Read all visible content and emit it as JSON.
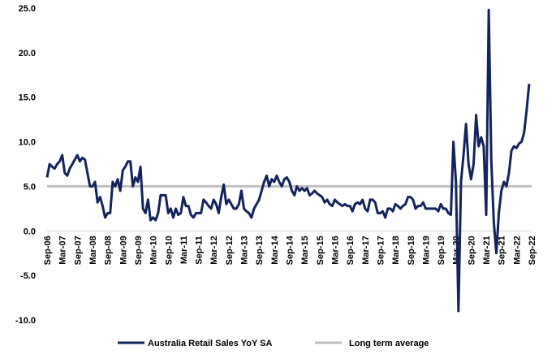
{
  "chart_data": {
    "type": "line",
    "categories": [
      "Sep-06",
      null,
      null,
      null,
      null,
      null,
      "Mar-07",
      null,
      null,
      null,
      null,
      null,
      "Sep-07",
      null,
      null,
      null,
      null,
      null,
      "Mar-08",
      null,
      null,
      null,
      null,
      null,
      "Sep-08",
      null,
      null,
      null,
      null,
      null,
      "Mar-09",
      null,
      null,
      null,
      null,
      null,
      "Sep-09",
      null,
      null,
      null,
      null,
      null,
      "Mar-10",
      null,
      null,
      null,
      null,
      null,
      "Sep-10",
      null,
      null,
      null,
      null,
      null,
      "Mar-11",
      null,
      null,
      null,
      null,
      null,
      "Sep-11",
      null,
      null,
      null,
      null,
      null,
      "Mar-12",
      null,
      null,
      null,
      null,
      null,
      "Sep-12",
      null,
      null,
      null,
      null,
      null,
      "Mar-13",
      null,
      null,
      null,
      null,
      null,
      "Sep-13",
      null,
      null,
      null,
      null,
      null,
      "Mar-14",
      null,
      null,
      null,
      null,
      null,
      "Sep-14",
      null,
      null,
      null,
      null,
      null,
      "Mar-15",
      null,
      null,
      null,
      null,
      null,
      "Sep-15",
      null,
      null,
      null,
      null,
      null,
      "Mar-16",
      null,
      null,
      null,
      null,
      null,
      "Sep-16",
      null,
      null,
      null,
      null,
      null,
      "Mar-17",
      null,
      null,
      null,
      null,
      null,
      "Sep-17",
      null,
      null,
      null,
      null,
      null,
      "Mar-18",
      null,
      null,
      null,
      null,
      null,
      "Sep-18",
      null,
      null,
      null,
      null,
      null,
      "Mar-19",
      null,
      null,
      null,
      null,
      null,
      "Sep-19",
      null,
      null,
      null,
      null,
      null,
      "Mar-20",
      null,
      null,
      null,
      null,
      null,
      "Sep-20",
      null,
      null,
      null,
      null,
      null,
      "Mar-21",
      null,
      null,
      null,
      null,
      null,
      "Sep-21",
      null,
      null,
      null,
      null,
      null,
      "Mar-22",
      null,
      null,
      null,
      null,
      null,
      "Sep-22"
    ],
    "series": [
      {
        "name": "Australia Retail Sales YoY SA",
        "color": "#13235b",
        "width": 3,
        "values": [
          6.0,
          7.5,
          7.2,
          7.0,
          7.5,
          7.8,
          8.5,
          6.5,
          6.2,
          7.0,
          7.5,
          8.0,
          8.5,
          7.8,
          8.2,
          8.0,
          6.5,
          5.0,
          5.0,
          5.5,
          3.2,
          3.8,
          2.8,
          1.5,
          2.0,
          2.0,
          5.5,
          5.0,
          5.8,
          4.5,
          6.8,
          7.2,
          7.8,
          7.8,
          5.0,
          6.0,
          5.5,
          7.2,
          2.5,
          2.0,
          3.5,
          1.2,
          1.5,
          1.2,
          2.0,
          4.0,
          4.0,
          4.0,
          2.0,
          2.5,
          1.5,
          2.5,
          1.8,
          2.0,
          3.8,
          2.8,
          2.8,
          1.8,
          1.5,
          2.0,
          2.0,
          2.0,
          3.5,
          3.2,
          2.8,
          2.5,
          3.5,
          3.0,
          2.0,
          3.8,
          5.2,
          3.0,
          3.5,
          3.0,
          2.5,
          2.5,
          3.0,
          4.5,
          2.5,
          2.2,
          2.0,
          1.5,
          2.5,
          3.0,
          3.5,
          4.5,
          5.5,
          6.2,
          5.0,
          5.8,
          5.5,
          6.2,
          5.5,
          5.0,
          5.8,
          6.0,
          5.5,
          4.5,
          4.0,
          5.0,
          4.5,
          4.8,
          4.5,
          4.8,
          4.0,
          4.2,
          4.5,
          4.2,
          4.0,
          3.8,
          3.2,
          3.5,
          3.0,
          2.8,
          3.5,
          3.2,
          3.0,
          2.8,
          3.0,
          2.8,
          2.8,
          2.2,
          3.0,
          3.2,
          3.0,
          3.5,
          2.5,
          2.2,
          3.5,
          3.5,
          3.2,
          2.0,
          2.0,
          2.2,
          1.5,
          2.5,
          2.5,
          2.2,
          3.0,
          2.8,
          2.5,
          2.8,
          3.0,
          3.8,
          3.8,
          3.5,
          2.5,
          2.8,
          2.8,
          3.2,
          2.5,
          2.5,
          2.5,
          2.5,
          2.5,
          2.2,
          3.0,
          2.5,
          2.5,
          2.0,
          1.8,
          10.0,
          5.5,
          -9.0,
          5.5,
          8.5,
          12.0,
          7.5,
          5.8,
          7.5,
          13.0,
          9.5,
          10.5,
          9.5,
          1.8,
          24.8,
          8.0,
          1.0,
          -2.5,
          2.0,
          4.5,
          5.5,
          5.0,
          6.5,
          9.0,
          9.5,
          9.3,
          9.8,
          10.0,
          11.0,
          13.5,
          16.5,
          null
        ]
      },
      {
        "name": "Long term average",
        "color": "#bfbfbf",
        "width": 3,
        "values": [
          5,
          5,
          5,
          5,
          5,
          5,
          5,
          5,
          5,
          5,
          5,
          5,
          5,
          5,
          5,
          5,
          5,
          5,
          5,
          5,
          5,
          5,
          5,
          5,
          5,
          5,
          5,
          5,
          5,
          5,
          5,
          5,
          5,
          5,
          5,
          5,
          5,
          5,
          5,
          5,
          5,
          5,
          5,
          5,
          5,
          5,
          5,
          5,
          5,
          5,
          5,
          5,
          5,
          5,
          5,
          5,
          5,
          5,
          5,
          5,
          5,
          5,
          5,
          5,
          5,
          5,
          5,
          5,
          5,
          5,
          5,
          5,
          5,
          5,
          5,
          5,
          5,
          5,
          5,
          5,
          5,
          5,
          5,
          5,
          5,
          5,
          5,
          5,
          5,
          5,
          5,
          5,
          5,
          5,
          5,
          5,
          5,
          5,
          5,
          5,
          5,
          5,
          5,
          5,
          5,
          5,
          5,
          5,
          5,
          5,
          5,
          5,
          5,
          5,
          5,
          5,
          5,
          5,
          5,
          5,
          5,
          5,
          5,
          5,
          5,
          5,
          5,
          5,
          5,
          5,
          5,
          5,
          5,
          5,
          5,
          5,
          5,
          5,
          5,
          5,
          5,
          5,
          5,
          5,
          5,
          5,
          5,
          5,
          5,
          5,
          5,
          5,
          5,
          5,
          5,
          5,
          5,
          5,
          5,
          5,
          5,
          5,
          5,
          5,
          5,
          5,
          5,
          5,
          5,
          5,
          5,
          5,
          5,
          5,
          5,
          5,
          5,
          5,
          5,
          5,
          5,
          5,
          5,
          5,
          5,
          5,
          5,
          5,
          5,
          5,
          5,
          5,
          5
        ]
      }
    ],
    "ylim": [
      -10,
      25
    ],
    "yticks": [
      {
        "value": -10,
        "label": "-10.0"
      },
      {
        "value": -5,
        "label": "-5.0"
      },
      {
        "value": 0,
        "label": "0.0"
      },
      {
        "value": 5,
        "label": "5.0"
      },
      {
        "value": 10,
        "label": "10.0"
      },
      {
        "value": 15,
        "label": "15.0"
      },
      {
        "value": 20,
        "label": "20.0"
      },
      {
        "value": 25,
        "label": "25.0"
      }
    ],
    "grid": false,
    "legend": "bottom"
  }
}
